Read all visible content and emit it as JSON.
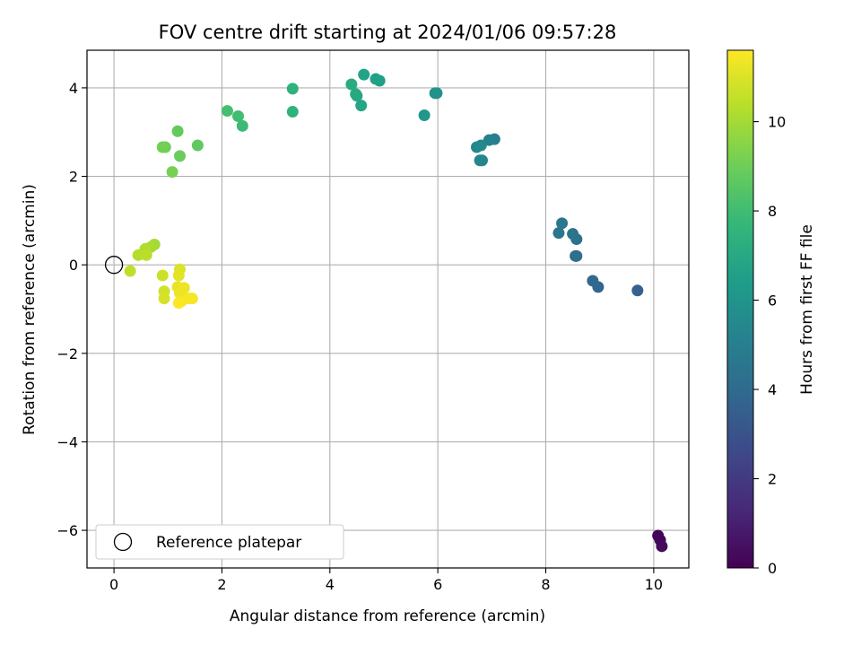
{
  "chart_data": {
    "type": "scatter",
    "title": "FOV centre drift starting at 2024/01/06 09:57:28",
    "xlabel": "Angular distance from reference (arcmin)",
    "ylabel": "Rotation from reference (arcmin)",
    "xlim": [
      -0.5,
      10.65
    ],
    "ylim": [
      -6.85,
      4.85
    ],
    "xticks": [
      0,
      2,
      4,
      6,
      8,
      10
    ],
    "yticks": [
      -6,
      -4,
      -2,
      0,
      2,
      4
    ],
    "grid": true,
    "legend": {
      "placement": "lower-left",
      "entries": [
        "Reference platepar"
      ]
    },
    "reference_point": {
      "x": 0,
      "y": 0,
      "label": "Reference platepar"
    },
    "colorbar": {
      "label": "Hours from first FF file",
      "range": [
        0,
        11.6
      ],
      "ticks": [
        0,
        2,
        4,
        6,
        8,
        10
      ],
      "colormap": [
        "#440154",
        "#482878",
        "#3e4989",
        "#31688e",
        "#26828e",
        "#1f9e89",
        "#35b779",
        "#6ece58",
        "#b5de2b",
        "#fde725"
      ]
    },
    "series": [
      {
        "points": [
          {
            "x": 10.08,
            "y": -6.12,
            "c": 0.1
          },
          {
            "x": 10.12,
            "y": -6.22,
            "c": 0.2
          },
          {
            "x": 10.15,
            "y": -6.36,
            "c": 0.3
          },
          {
            "x": 9.7,
            "y": -0.58,
            "c": 3.6
          },
          {
            "x": 8.97,
            "y": -0.5,
            "c": 3.8
          },
          {
            "x": 8.87,
            "y": -0.36,
            "c": 3.9
          },
          {
            "x": 8.57,
            "y": 0.2,
            "c": 4.1
          },
          {
            "x": 8.55,
            "y": 0.2,
            "c": 4.2
          },
          {
            "x": 8.57,
            "y": 0.58,
            "c": 4.3
          },
          {
            "x": 8.5,
            "y": 0.7,
            "c": 4.4
          },
          {
            "x": 8.24,
            "y": 0.72,
            "c": 4.5
          },
          {
            "x": 8.3,
            "y": 0.94,
            "c": 4.6
          },
          {
            "x": 7.05,
            "y": 2.84,
            "c": 5.0
          },
          {
            "x": 6.95,
            "y": 2.82,
            "c": 5.1
          },
          {
            "x": 6.78,
            "y": 2.36,
            "c": 5.2
          },
          {
            "x": 6.82,
            "y": 2.36,
            "c": 5.3
          },
          {
            "x": 6.72,
            "y": 2.66,
            "c": 5.4
          },
          {
            "x": 6.8,
            "y": 2.7,
            "c": 5.5
          },
          {
            "x": 5.95,
            "y": 3.88,
            "c": 5.8
          },
          {
            "x": 5.98,
            "y": 3.88,
            "c": 5.9
          },
          {
            "x": 5.75,
            "y": 3.38,
            "c": 6.1
          },
          {
            "x": 4.92,
            "y": 4.16,
            "c": 6.5
          },
          {
            "x": 4.85,
            "y": 4.2,
            "c": 6.6
          },
          {
            "x": 4.63,
            "y": 4.3,
            "c": 6.7
          },
          {
            "x": 4.58,
            "y": 3.6,
            "c": 6.8
          },
          {
            "x": 4.5,
            "y": 3.82,
            "c": 6.9
          },
          {
            "x": 4.48,
            "y": 3.86,
            "c": 7.0
          },
          {
            "x": 4.4,
            "y": 4.08,
            "c": 7.1
          },
          {
            "x": 3.31,
            "y": 3.98,
            "c": 7.4
          },
          {
            "x": 3.31,
            "y": 3.46,
            "c": 7.5
          },
          {
            "x": 2.38,
            "y": 3.14,
            "c": 7.9
          },
          {
            "x": 2.3,
            "y": 3.36,
            "c": 8.0
          },
          {
            "x": 2.1,
            "y": 3.48,
            "c": 8.1
          },
          {
            "x": 1.55,
            "y": 2.7,
            "c": 8.7
          },
          {
            "x": 1.18,
            "y": 3.02,
            "c": 8.8
          },
          {
            "x": 1.22,
            "y": 2.46,
            "c": 8.9
          },
          {
            "x": 0.95,
            "y": 2.66,
            "c": 9.0
          },
          {
            "x": 0.9,
            "y": 2.66,
            "c": 9.1
          },
          {
            "x": 1.08,
            "y": 2.1,
            "c": 9.2
          },
          {
            "x": 0.75,
            "y": 0.46,
            "c": 10.0
          },
          {
            "x": 0.68,
            "y": 0.4,
            "c": 10.1
          },
          {
            "x": 0.58,
            "y": 0.36,
            "c": 10.2
          },
          {
            "x": 0.45,
            "y": 0.22,
            "c": 10.3
          },
          {
            "x": 0.6,
            "y": 0.22,
            "c": 10.4
          },
          {
            "x": 0.3,
            "y": -0.14,
            "c": 10.5
          },
          {
            "x": 0.9,
            "y": -0.24,
            "c": 10.7
          },
          {
            "x": 0.93,
            "y": -0.6,
            "c": 10.8
          },
          {
            "x": 0.93,
            "y": -0.76,
            "c": 10.9
          },
          {
            "x": 1.22,
            "y": -0.1,
            "c": 11.0
          },
          {
            "x": 1.2,
            "y": -0.24,
            "c": 11.1
          },
          {
            "x": 1.18,
            "y": -0.5,
            "c": 11.2
          },
          {
            "x": 1.3,
            "y": -0.52,
            "c": 11.3
          },
          {
            "x": 1.22,
            "y": -0.64,
            "c": 11.3
          },
          {
            "x": 1.25,
            "y": -0.82,
            "c": 11.4
          },
          {
            "x": 1.45,
            "y": -0.76,
            "c": 11.5
          },
          {
            "x": 1.38,
            "y": -0.76,
            "c": 11.5
          },
          {
            "x": 1.2,
            "y": -0.86,
            "c": 11.6
          }
        ]
      }
    ]
  }
}
